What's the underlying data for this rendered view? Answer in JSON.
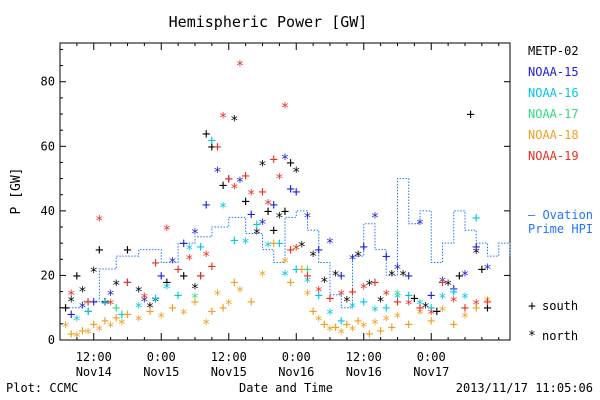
{
  "chart_data": {
    "type": "scatter",
    "title": "Hemispheric Power [GW]",
    "xlabel": "Date and Time",
    "ylabel": "P [GW]",
    "ylim": [
      0,
      92
    ],
    "xlim_hours": [
      0,
      80
    ],
    "x_unit": "hours from 2013-11-14 06:00",
    "yticks": [
      0,
      20,
      40,
      60,
      80
    ],
    "xticks": [
      {
        "h": 6,
        "time": "12:00",
        "date": "Nov14"
      },
      {
        "h": 18,
        "time": "0:00",
        "date": "Nov15"
      },
      {
        "h": 30,
        "time": "12:00",
        "date": "Nov15"
      },
      {
        "h": 42,
        "time": "0:00",
        "date": "Nov16"
      },
      {
        "h": 54,
        "time": "12:00",
        "date": "Nov16"
      },
      {
        "h": 66,
        "time": "0:00",
        "date": "Nov17"
      }
    ],
    "footer_left": "Plot: CCMC",
    "footer_right": "2013/11/17 11:05:06",
    "marker_legend": [
      {
        "symbol": "+",
        "label": "south"
      },
      {
        "symbol": "*",
        "label": "north"
      }
    ],
    "ovation_label": [
      "— Ovation",
      "Prime HPI"
    ],
    "ovation_color": "#1f77ff",
    "ovation": [
      [
        0,
        10
      ],
      [
        4,
        12
      ],
      [
        7,
        22
      ],
      [
        10,
        26
      ],
      [
        14,
        28
      ],
      [
        18,
        24
      ],
      [
        21,
        30
      ],
      [
        24,
        32
      ],
      [
        27,
        35
      ],
      [
        30,
        38
      ],
      [
        33,
        33
      ],
      [
        36,
        28
      ],
      [
        38,
        24
      ],
      [
        40,
        38
      ],
      [
        42,
        40
      ],
      [
        44,
        34
      ],
      [
        46,
        24
      ],
      [
        48,
        14
      ],
      [
        50,
        10
      ],
      [
        52,
        26
      ],
      [
        54,
        36
      ],
      [
        56,
        28
      ],
      [
        58,
        20
      ],
      [
        60,
        50
      ],
      [
        62,
        36
      ],
      [
        64,
        40
      ],
      [
        66,
        24
      ],
      [
        68,
        30
      ],
      [
        70,
        40
      ],
      [
        72,
        34
      ],
      [
        74,
        30
      ],
      [
        76,
        26
      ],
      [
        78,
        30
      ],
      [
        80,
        26
      ]
    ],
    "series": [
      {
        "name": "METP-02",
        "color": "#000000",
        "points": [
          [
            1,
            10,
            "s"
          ],
          [
            2,
            12,
            "n"
          ],
          [
            3,
            20,
            "s"
          ],
          [
            4,
            15,
            "n"
          ],
          [
            5,
            9,
            "s"
          ],
          [
            6,
            21,
            "n"
          ],
          [
            7,
            28,
            "s"
          ],
          [
            8,
            12,
            "s"
          ],
          [
            10,
            17,
            "n"
          ],
          [
            12,
            28,
            "s"
          ],
          [
            14,
            15,
            "n"
          ],
          [
            16,
            10,
            "n"
          ],
          [
            17,
            12,
            "n"
          ],
          [
            19,
            18,
            "s"
          ],
          [
            22,
            20,
            "s"
          ],
          [
            24,
            16,
            "n"
          ],
          [
            25,
            20,
            "s"
          ],
          [
            26,
            64,
            "s"
          ],
          [
            27,
            60,
            "s"
          ],
          [
            29,
            48,
            "s"
          ],
          [
            31,
            68,
            "n"
          ],
          [
            33,
            43,
            "s"
          ],
          [
            35,
            33,
            "n"
          ],
          [
            36,
            54,
            "n"
          ],
          [
            37,
            40,
            "s"
          ],
          [
            38,
            34,
            "s"
          ],
          [
            39,
            38,
            "n"
          ],
          [
            40,
            40,
            "s"
          ],
          [
            41,
            55,
            "s"
          ],
          [
            42,
            52,
            "n"
          ],
          [
            43,
            29,
            "n"
          ],
          [
            45,
            26,
            "n"
          ],
          [
            47,
            18,
            "n"
          ],
          [
            49,
            20,
            "n"
          ],
          [
            51,
            12,
            "n"
          ],
          [
            53,
            26,
            "n"
          ],
          [
            55,
            17,
            "n"
          ],
          [
            57,
            12,
            "n"
          ],
          [
            59,
            20,
            "n"
          ],
          [
            61,
            20,
            "n"
          ],
          [
            63,
            13,
            "s"
          ],
          [
            65,
            10,
            "n"
          ],
          [
            67,
            9,
            "s"
          ],
          [
            69,
            17,
            "n"
          ],
          [
            71,
            20,
            "s"
          ],
          [
            73,
            70,
            "s"
          ],
          [
            74,
            27,
            "n"
          ],
          [
            75,
            22,
            "s"
          ],
          [
            76,
            10,
            "s"
          ]
        ]
      },
      {
        "name": "NOAA-15",
        "color": "#2020e0",
        "points": [
          [
            2,
            8,
            "s"
          ],
          [
            4,
            10,
            "n"
          ],
          [
            6,
            12,
            "s"
          ],
          [
            9,
            14,
            "n"
          ],
          [
            12,
            18,
            "s"
          ],
          [
            15,
            12,
            "n"
          ],
          [
            18,
            20,
            "s"
          ],
          [
            20,
            24,
            "n"
          ],
          [
            22,
            30,
            "s"
          ],
          [
            24,
            33,
            "n"
          ],
          [
            26,
            42,
            "s"
          ],
          [
            28,
            52,
            "n"
          ],
          [
            30,
            50,
            "s"
          ],
          [
            32,
            49,
            "n"
          ],
          [
            34,
            39,
            "s"
          ],
          [
            36,
            36,
            "n"
          ],
          [
            38,
            42,
            "s"
          ],
          [
            40,
            56,
            "n"
          ],
          [
            41,
            47,
            "s"
          ],
          [
            42,
            46,
            "s"
          ],
          [
            44,
            38,
            "n"
          ],
          [
            46,
            28,
            "s"
          ],
          [
            48,
            30,
            "n"
          ],
          [
            50,
            20,
            "s"
          ],
          [
            52,
            25,
            "n"
          ],
          [
            54,
            29,
            "s"
          ],
          [
            56,
            38,
            "n"
          ],
          [
            58,
            26,
            "s"
          ],
          [
            60,
            22,
            "n"
          ],
          [
            62,
            20,
            "s"
          ],
          [
            64,
            36,
            "n"
          ],
          [
            66,
            14,
            "s"
          ],
          [
            68,
            18,
            "n"
          ],
          [
            70,
            16,
            "s"
          ],
          [
            72,
            20,
            "n"
          ],
          [
            74,
            29,
            "s"
          ],
          [
            76,
            22,
            "n"
          ]
        ]
      },
      {
        "name": "NOAA-16",
        "color": "#00c8e6",
        "points": [
          [
            3,
            6,
            "n"
          ],
          [
            5,
            9,
            "s"
          ],
          [
            8,
            11,
            "n"
          ],
          [
            11,
            8,
            "s"
          ],
          [
            14,
            10,
            "n"
          ],
          [
            17,
            13,
            "s"
          ],
          [
            19,
            16,
            "n"
          ],
          [
            21,
            14,
            "s"
          ],
          [
            23,
            28,
            "n"
          ],
          [
            25,
            29,
            "s"
          ],
          [
            27,
            62,
            "s"
          ],
          [
            29,
            41,
            "n"
          ],
          [
            31,
            31,
            "s"
          ],
          [
            33,
            30,
            "n"
          ],
          [
            35,
            36,
            "s"
          ],
          [
            37,
            29,
            "n"
          ],
          [
            39,
            30,
            "s"
          ],
          [
            40,
            20,
            "n"
          ],
          [
            42,
            22,
            "s"
          ],
          [
            44,
            18,
            "n"
          ],
          [
            46,
            14,
            "s"
          ],
          [
            48,
            8,
            "n"
          ],
          [
            50,
            6,
            "s"
          ],
          [
            52,
            10,
            "n"
          ],
          [
            54,
            12,
            "s"
          ],
          [
            56,
            9,
            "n"
          ],
          [
            58,
            10,
            "s"
          ],
          [
            60,
            13,
            "n"
          ],
          [
            62,
            14,
            "s"
          ],
          [
            64,
            11,
            "n"
          ],
          [
            66,
            10,
            "s"
          ],
          [
            68,
            13,
            "n"
          ],
          [
            70,
            15,
            "s"
          ],
          [
            72,
            13,
            "n"
          ],
          [
            74,
            38,
            "s"
          ]
        ]
      },
      {
        "name": "NOAA-17",
        "color": "#30dc80",
        "points": [
          [
            10,
            10,
            "s"
          ],
          [
            24,
            13,
            "n"
          ],
          [
            44,
            22,
            "s"
          ],
          [
            60,
            14,
            "n"
          ]
        ]
      },
      {
        "name": "NOAA-18",
        "color": "#f0a020",
        "points": [
          [
            1,
            4,
            "n"
          ],
          [
            2,
            2,
            "s"
          ],
          [
            3,
            1,
            "n"
          ],
          [
            4,
            3,
            "s"
          ],
          [
            5,
            2,
            "n"
          ],
          [
            6,
            5,
            "s"
          ],
          [
            7,
            3,
            "n"
          ],
          [
            8,
            6,
            "s"
          ],
          [
            9,
            4,
            "n"
          ],
          [
            10,
            7,
            "s"
          ],
          [
            11,
            5,
            "n"
          ],
          [
            12,
            8,
            "s"
          ],
          [
            14,
            6,
            "n"
          ],
          [
            16,
            9,
            "s"
          ],
          [
            18,
            7,
            "n"
          ],
          [
            20,
            10,
            "s"
          ],
          [
            22,
            8,
            "n"
          ],
          [
            24,
            12,
            "s"
          ],
          [
            26,
            5,
            "n"
          ],
          [
            27,
            9,
            "s"
          ],
          [
            28,
            14,
            "n"
          ],
          [
            29,
            10,
            "s"
          ],
          [
            30,
            11,
            "n"
          ],
          [
            31,
            18,
            "s"
          ],
          [
            32,
            15,
            "n"
          ],
          [
            34,
            12,
            "s"
          ],
          [
            36,
            20,
            "n"
          ],
          [
            38,
            30,
            "s"
          ],
          [
            40,
            24,
            "n"
          ],
          [
            41,
            18,
            "s"
          ],
          [
            42,
            28,
            "n"
          ],
          [
            43,
            22,
            "s"
          ],
          [
            44,
            14,
            "n"
          ],
          [
            45,
            9,
            "s"
          ],
          [
            46,
            6,
            "n"
          ],
          [
            47,
            5,
            "s"
          ],
          [
            48,
            3,
            "n"
          ],
          [
            49,
            4,
            "s"
          ],
          [
            50,
            2,
            "n"
          ],
          [
            51,
            5,
            "s"
          ],
          [
            52,
            3,
            "n"
          ],
          [
            53,
            6,
            "s"
          ],
          [
            54,
            4,
            "n"
          ],
          [
            55,
            2,
            "s"
          ],
          [
            56,
            5,
            "n"
          ],
          [
            57,
            3,
            "s"
          ],
          [
            58,
            6,
            "n"
          ],
          [
            59,
            4,
            "s"
          ],
          [
            60,
            7,
            "n"
          ],
          [
            62,
            5,
            "s"
          ],
          [
            64,
            8,
            "n"
          ],
          [
            66,
            6,
            "s"
          ],
          [
            68,
            9,
            "n"
          ],
          [
            70,
            5,
            "s"
          ],
          [
            72,
            7,
            "n"
          ],
          [
            74,
            10,
            "s"
          ],
          [
            76,
            12,
            "n"
          ]
        ]
      },
      {
        "name": "NOAA-19",
        "color": "#e83020",
        "points": [
          [
            2,
            14,
            "n"
          ],
          [
            5,
            12,
            "s"
          ],
          [
            7,
            37,
            "n"
          ],
          [
            9,
            11,
            "n"
          ],
          [
            12,
            18,
            "s"
          ],
          [
            15,
            13,
            "n"
          ],
          [
            17,
            24,
            "s"
          ],
          [
            19,
            34,
            "n"
          ],
          [
            21,
            22,
            "s"
          ],
          [
            23,
            25,
            "n"
          ],
          [
            25,
            20,
            "s"
          ],
          [
            26,
            26,
            "n"
          ],
          [
            27,
            23,
            "s"
          ],
          [
            28,
            60,
            "s"
          ],
          [
            29,
            69,
            "n"
          ],
          [
            30,
            50,
            "s"
          ],
          [
            31,
            47,
            "n"
          ],
          [
            32,
            85,
            "n"
          ],
          [
            33,
            51,
            "s"
          ],
          [
            34,
            45,
            "n"
          ],
          [
            36,
            46,
            "s"
          ],
          [
            37,
            42,
            "n"
          ],
          [
            38,
            56,
            "s"
          ],
          [
            39,
            50,
            "n"
          ],
          [
            40,
            72,
            "n"
          ],
          [
            41,
            28,
            "s"
          ],
          [
            42,
            28,
            "n"
          ],
          [
            44,
            20,
            "s"
          ],
          [
            46,
            15,
            "n"
          ],
          [
            48,
            13,
            "s"
          ],
          [
            50,
            14,
            "n"
          ],
          [
            52,
            15,
            "s"
          ],
          [
            54,
            16,
            "n"
          ],
          [
            56,
            18,
            "s"
          ],
          [
            58,
            14,
            "n"
          ],
          [
            60,
            12,
            "s"
          ],
          [
            62,
            11,
            "n"
          ],
          [
            64,
            10,
            "s"
          ],
          [
            66,
            8,
            "n"
          ],
          [
            68,
            18,
            "s"
          ],
          [
            70,
            12,
            "n"
          ],
          [
            72,
            10,
            "s"
          ],
          [
            74,
            11,
            "n"
          ],
          [
            76,
            12,
            "s"
          ]
        ]
      }
    ]
  }
}
